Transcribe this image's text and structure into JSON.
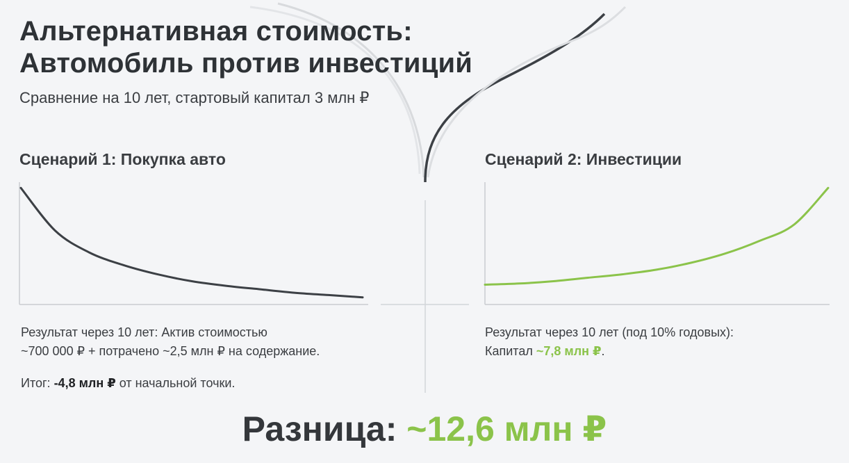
{
  "title_line1": "Альтернативная стоимость:",
  "title_line2": "Автомобиль против инвестиций",
  "subtitle": "Сравнение на 10 лет, стартовый капитал 3 млн ₽",
  "scenario1": {
    "title": "Сценарий 1: Покупка авто",
    "result_line1": "Результат через 10 лет: Актив стоимостью",
    "result_line2": "~700 000 ₽ + потрачено ~2,5 млн ₽ на содержание.",
    "total_prefix": "Итог: ",
    "total_value": "-4,8 млн ₽",
    "total_suffix": " от начальной точки."
  },
  "scenario2": {
    "title": "Сценарий 2: Инвестиции",
    "result_line1": "Результат через 10 лет (под 10% годовых):",
    "result_prefix": "Капитал ",
    "result_value": "~7,8 млн ₽",
    "result_suffix": "."
  },
  "difference": {
    "label": "Разница: ",
    "value": "~12,6 млн ₽"
  },
  "colors": {
    "decline_line": "#3c4045",
    "growth_line": "#8bc34a",
    "axis": "#c9ccd0"
  },
  "chart_data": [
    {
      "type": "line",
      "series": [
        {
          "x": [
            0,
            1,
            2,
            3,
            4,
            5,
            6,
            7,
            8,
            9,
            10
          ],
          "values": [
            1.0,
            0.63,
            0.44,
            0.33,
            0.25,
            0.19,
            0.15,
            0.12,
            0.09,
            0.07,
            0.05
          ]
        }
      ],
      "xlim": [
        0,
        10
      ],
      "ylim": [
        0,
        1.05
      ],
      "grid": false,
      "axes_ticks": false
    },
    {
      "type": "line",
      "series": [
        {
          "x": [
            0,
            1,
            2,
            3,
            4,
            5,
            6,
            7,
            8,
            9,
            10
          ],
          "values": [
            0.16,
            0.17,
            0.19,
            0.22,
            0.25,
            0.29,
            0.35,
            0.43,
            0.54,
            0.68,
            1.0
          ]
        }
      ],
      "xlim": [
        0,
        10
      ],
      "ylim": [
        0,
        1.05
      ],
      "grid": false,
      "axes_ticks": false
    }
  ]
}
